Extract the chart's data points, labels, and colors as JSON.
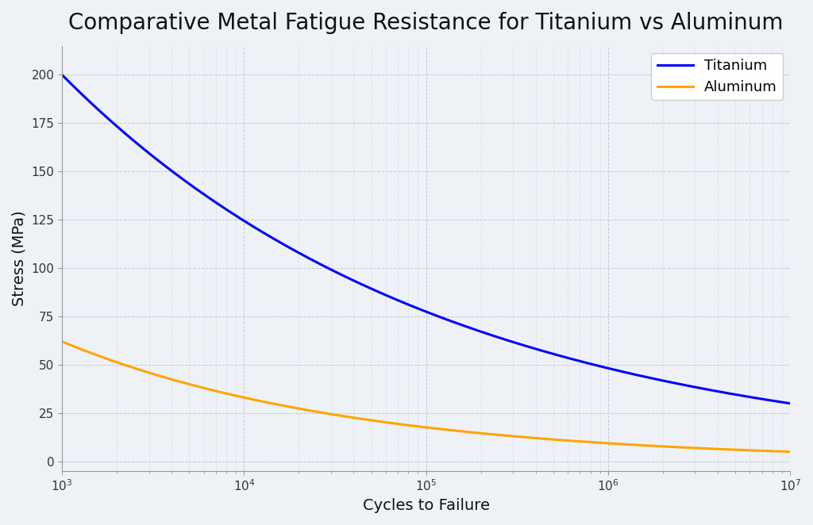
{
  "title": "Comparative Metal Fatigue Resistance for Titanium vs Aluminum",
  "xlabel": "Cycles to Failure",
  "ylabel": "Stress (MPa)",
  "xlim_log": [
    3,
    7
  ],
  "ylim": [
    -5,
    215
  ],
  "titanium_color": "#0000ff",
  "aluminum_color": "#ffa500",
  "titanium_label": "Titanium",
  "aluminum_label": "Aluminum",
  "line_width": 2.2,
  "background_color": "#eef2f7",
  "grid_color": "#c0c8d8",
  "title_fontsize": 20,
  "label_fontsize": 14,
  "legend_fontsize": 13,
  "tick_fontsize": 11,
  "titanium_S_at_1e3": 200,
  "titanium_S_at_1e7": 30,
  "aluminum_S_at_1e3": 62,
  "aluminum_S_at_1e7": 5,
  "yticks": [
    0,
    25,
    50,
    75,
    100,
    125,
    150,
    175,
    200
  ]
}
